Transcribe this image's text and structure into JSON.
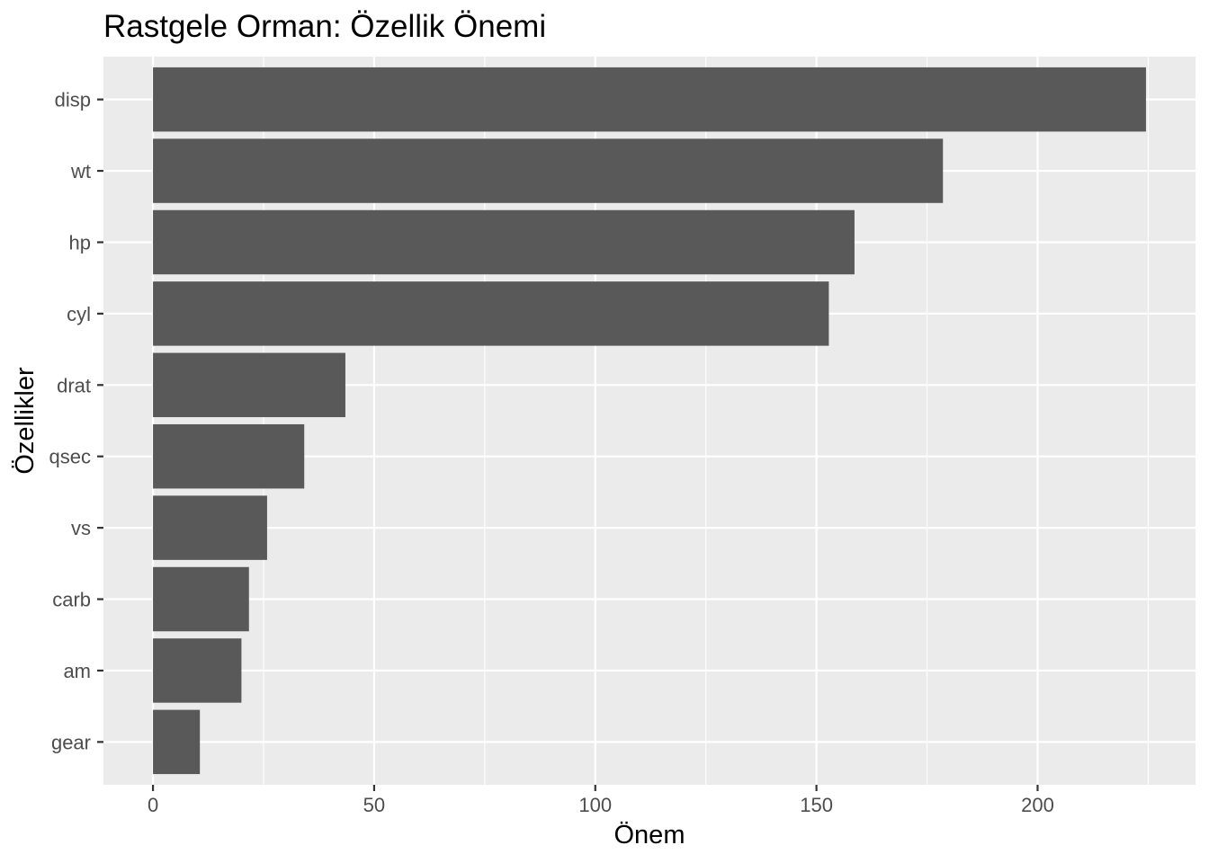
{
  "chart_data": {
    "type": "bar",
    "orientation": "horizontal",
    "title": "Rastgele Orman: Özellik Önemi",
    "xlabel": "Önem",
    "ylabel": "Özellikler",
    "categories": [
      "disp",
      "wt",
      "hp",
      "cyl",
      "drat",
      "qsec",
      "vs",
      "carb",
      "am",
      "gear"
    ],
    "values": [
      224.5,
      178.6,
      158.6,
      152.8,
      43.5,
      34.2,
      25.8,
      21.7,
      20.0,
      10.6
    ],
    "xlim": [
      -11.2,
      235.7
    ],
    "xticks": [
      0,
      50,
      100,
      150,
      200
    ],
    "grid": true,
    "colors": {
      "bar": "#595959",
      "panel": "#ebebeb",
      "grid": "#ffffff",
      "tick": "#333333"
    }
  }
}
